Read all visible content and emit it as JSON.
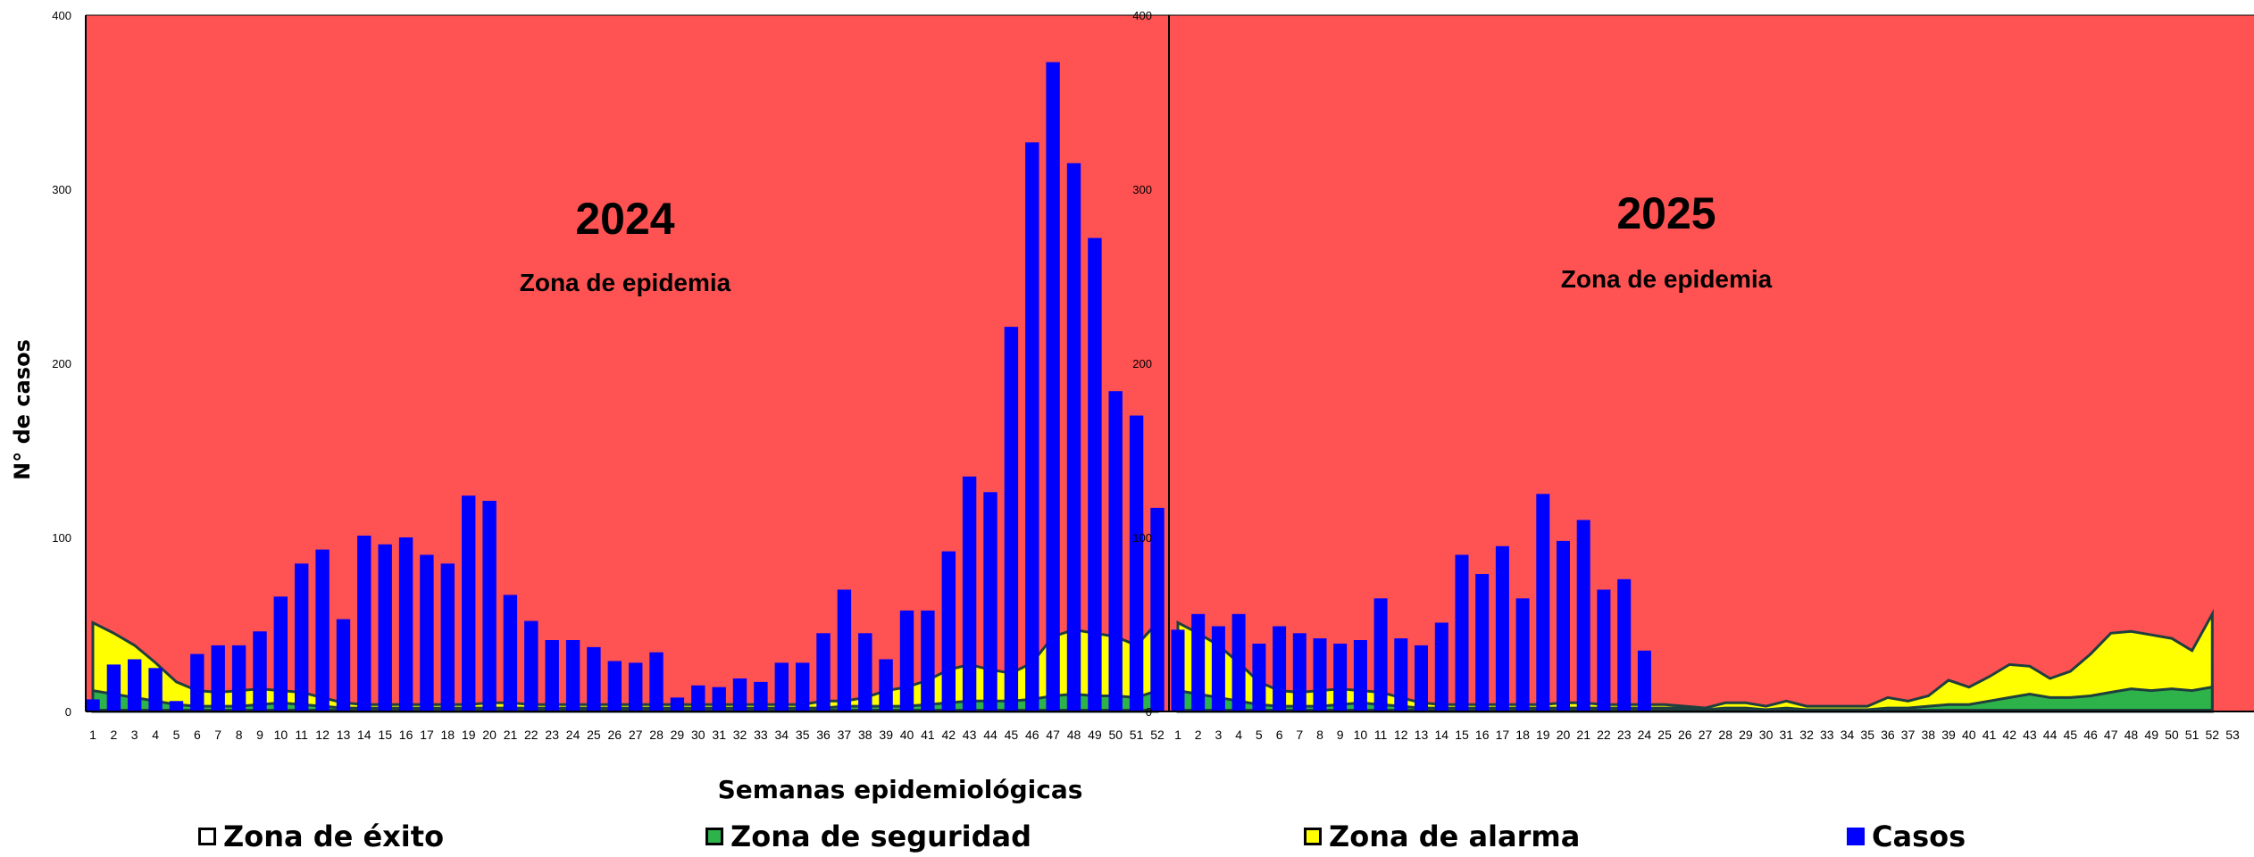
{
  "chart_data": {
    "type": "bar",
    "ylabel": "N° de casos",
    "xlabel": "Semanas epidemiológicas",
    "ylim": [
      0,
      400
    ],
    "yticks": [
      0,
      100,
      200,
      300,
      400
    ],
    "colors": {
      "epidemia": "#FF5252",
      "alarma": "#FFFF00",
      "seguridad": "#2DB34A",
      "exito": "#FFFFFF",
      "casos": "#0000FF",
      "line": "#1F3F3F"
    },
    "legend": [
      {
        "name": "Zona de éxito",
        "swatch": "#FFFFFF"
      },
      {
        "name": "Zona de seguridad",
        "swatch": "#2DB34A"
      },
      {
        "name": "Zona de alarma",
        "swatch": "#FFFF00"
      },
      {
        "name": "Casos",
        "swatch": "#0000FF"
      }
    ],
    "panels": [
      {
        "year": "2024",
        "zone_label": "Zona de epidemia",
        "weeks": [
          1,
          2,
          3,
          4,
          5,
          6,
          7,
          8,
          9,
          10,
          11,
          12,
          13,
          14,
          15,
          16,
          17,
          18,
          19,
          20,
          21,
          22,
          23,
          24,
          25,
          26,
          27,
          28,
          29,
          30,
          31,
          32,
          33,
          34,
          35,
          36,
          37,
          38,
          39,
          40,
          41,
          42,
          43,
          44,
          45,
          46,
          47,
          48,
          49,
          50,
          51,
          52
        ],
        "casos": [
          7,
          27,
          30,
          25,
          6,
          33,
          38,
          38,
          46,
          66,
          85,
          93,
          53,
          101,
          96,
          100,
          90,
          85,
          124,
          121,
          67,
          52,
          41,
          41,
          37,
          29,
          28,
          34,
          8,
          15,
          14,
          19,
          17,
          28,
          28,
          45,
          70,
          45,
          30,
          58,
          58,
          92,
          135,
          126,
          221,
          327,
          373,
          315,
          272,
          184,
          170,
          117
        ],
        "alarma": [
          51,
          45,
          38,
          28,
          17,
          12,
          11,
          12,
          13,
          12,
          11,
          8,
          5,
          4,
          4,
          4,
          4,
          4,
          4,
          5,
          5,
          4,
          4,
          4,
          4,
          4,
          4,
          4,
          4,
          4,
          4,
          4,
          4,
          4,
          4,
          6,
          6,
          8,
          12,
          14,
          18,
          24,
          27,
          24,
          22,
          28,
          43,
          47,
          45,
          43,
          38,
          51
        ],
        "seguridad": [
          12,
          10,
          8,
          6,
          4,
          3,
          3,
          3,
          4,
          5,
          4,
          3,
          2,
          2,
          2,
          2,
          2,
          2,
          2,
          2,
          2,
          2,
          2,
          2,
          2,
          2,
          2,
          2,
          2,
          2,
          2,
          2,
          2,
          2,
          2,
          2,
          3,
          3,
          3,
          3,
          4,
          5,
          6,
          6,
          6,
          7,
          9,
          10,
          9,
          9,
          8,
          12
        ],
        "exito": [
          1,
          1,
          1,
          1,
          1,
          1,
          1,
          1,
          1,
          1,
          1,
          1,
          1,
          1,
          1,
          1,
          1,
          1,
          1,
          1,
          1,
          1,
          1,
          1,
          1,
          1,
          1,
          1,
          1,
          1,
          1,
          1,
          1,
          1,
          1,
          1,
          1,
          1,
          1,
          1,
          1,
          1,
          1,
          1,
          1,
          1,
          1,
          1,
          1,
          1,
          1,
          1
        ]
      },
      {
        "year": "2025",
        "zone_label": "Zona de epidemia",
        "weeks": [
          1,
          2,
          3,
          4,
          5,
          6,
          7,
          8,
          9,
          10,
          11,
          12,
          13,
          14,
          15,
          16,
          17,
          18,
          19,
          20,
          21,
          22,
          23,
          24,
          25,
          26,
          27,
          28,
          29,
          30,
          31,
          32,
          33,
          34,
          35,
          36,
          37,
          38,
          39,
          40,
          41,
          42,
          43,
          44,
          45,
          46,
          47,
          48,
          49,
          50,
          51,
          52,
          53
        ],
        "casos": [
          47,
          56,
          49,
          56,
          39,
          49,
          45,
          42,
          39,
          41,
          65,
          42,
          38,
          51,
          90,
          79,
          95,
          65,
          125,
          98,
          110,
          70,
          76,
          35
        ],
        "alarma": [
          51,
          45,
          38,
          28,
          17,
          12,
          11,
          12,
          13,
          12,
          11,
          8,
          5,
          4,
          4,
          4,
          4,
          4,
          4,
          5,
          5,
          4,
          4,
          4,
          4,
          3,
          2,
          5,
          5,
          3,
          6,
          3,
          3,
          3,
          3,
          8,
          6,
          9,
          18,
          14,
          20,
          27,
          26,
          19,
          23,
          33,
          45,
          46,
          44,
          42,
          35,
          56,
          null
        ],
        "seguridad": [
          12,
          10,
          8,
          6,
          4,
          3,
          3,
          3,
          4,
          5,
          4,
          3,
          2,
          2,
          2,
          2,
          2,
          2,
          2,
          2,
          2,
          2,
          2,
          2,
          2,
          2,
          1,
          2,
          2,
          1,
          2,
          1,
          1,
          1,
          1,
          2,
          2,
          3,
          4,
          4,
          6,
          8,
          10,
          8,
          8,
          9,
          11,
          13,
          12,
          13,
          12,
          14,
          null
        ],
        "exito": [
          1,
          1,
          1,
          1,
          1,
          1,
          1,
          1,
          1,
          1,
          1,
          1,
          1,
          1,
          1,
          1,
          1,
          1,
          1,
          1,
          1,
          1,
          1,
          1,
          1,
          1,
          1,
          1,
          1,
          1,
          1,
          1,
          1,
          1,
          1,
          1,
          1,
          1,
          1,
          1,
          1,
          1,
          1,
          1,
          1,
          1,
          1,
          1,
          1,
          1,
          1,
          1,
          null
        ]
      }
    ]
  }
}
